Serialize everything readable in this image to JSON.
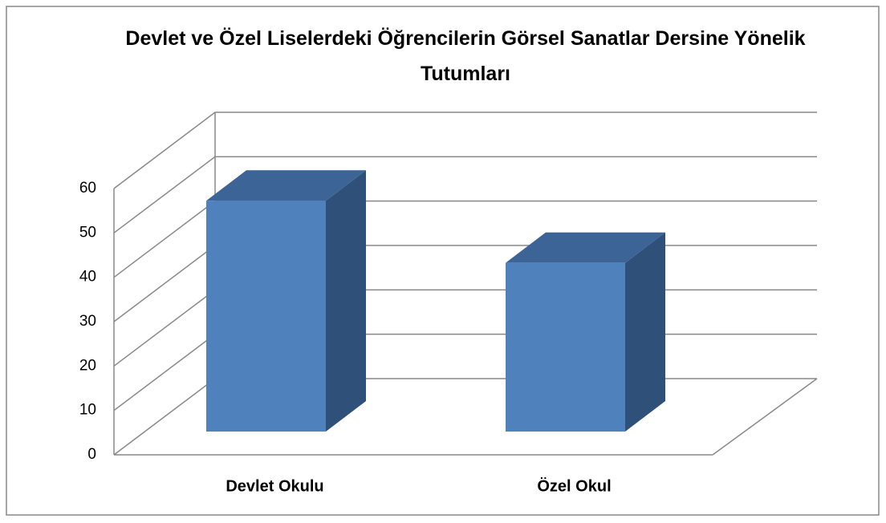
{
  "chart_data": {
    "type": "bar3d",
    "title": "Devlet ve Özel Liselerdeki Öğrencilerin Görsel Sanatlar Dersine Yönelik Tutumları",
    "categories": [
      "Devlet Okulu",
      "Özel Okul"
    ],
    "values": [
      52,
      38
    ],
    "color": "#4f81bd",
    "ylim": [
      0,
      60
    ],
    "yticks": [
      0,
      10,
      20,
      30,
      40,
      50,
      60
    ],
    "grid": true
  }
}
